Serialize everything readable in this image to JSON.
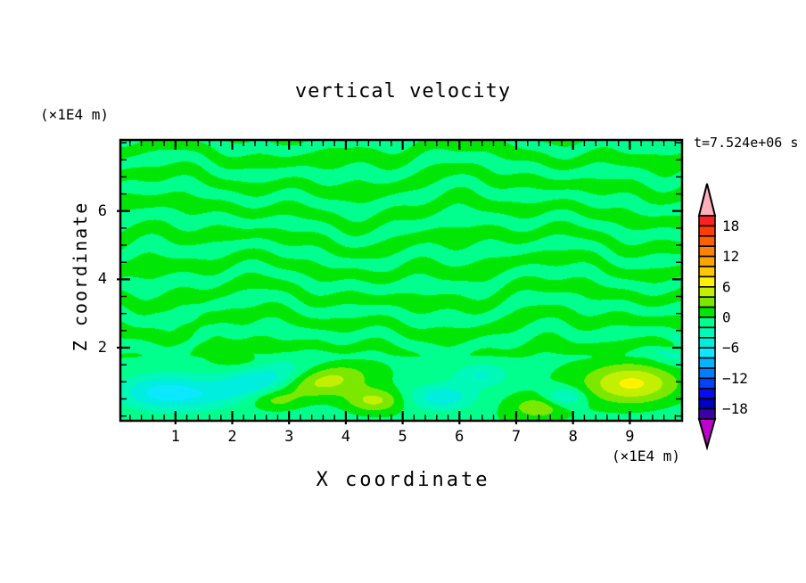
{
  "header": {
    "title": "vertical velocity",
    "time_label": "t=7.524e+06 s"
  },
  "axes": {
    "x": {
      "title": "X coordinate",
      "units": "(×1E4 m)",
      "tick_labels": [
        "1",
        "2",
        "3",
        "4",
        "5",
        "6",
        "7",
        "8",
        "9"
      ],
      "tick_values": [
        1,
        2,
        3,
        4,
        5,
        6,
        7,
        8,
        9
      ],
      "minor_step": 0.2,
      "range": [
        0.03,
        9.92
      ]
    },
    "z": {
      "title": "Z coordinate",
      "units": "(×1E4 m)",
      "tick_labels": [
        "2",
        "4",
        "6"
      ],
      "tick_values": [
        2,
        4,
        6
      ],
      "minor_step": 0.5,
      "range": [
        -0.14,
        8.08
      ]
    }
  },
  "colorbar": {
    "labels": [
      "18",
      "12",
      "6",
      "0",
      "−6",
      "−12",
      "−18"
    ],
    "label_values": [
      18,
      12,
      6,
      0,
      -6,
      -12,
      -18
    ],
    "min": -20,
    "max": 20,
    "interval": 2,
    "cell_colors_top_to_bottom": [
      "#fb2222",
      "#ff3c00",
      "#ff6000",
      "#ff8200",
      "#ffa300",
      "#ffc800",
      "#fff200",
      "#c3f000",
      "#7ce800",
      "#00e605",
      "#00ff8c",
      "#00f8b8",
      "#00eede",
      "#0ce8ff",
      "#00b4ff",
      "#007cff",
      "#0043ff",
      "#0b0bf0",
      "#0000c0",
      "#3c00a8"
    ],
    "over_arrow_color": "#ffb0bc",
    "under_arrow_color": "#c000cc"
  },
  "chart_data": {
    "type": "heatmap",
    "subtype": "filled_contour",
    "title": "vertical velocity",
    "xlabel": "X coordinate (×1E4 m)",
    "ylabel": "Z coordinate (×1E4 m)",
    "time_annotation": "t=7.524e+06 s",
    "x_range": [
      0.03,
      9.92
    ],
    "z_range": [
      -0.14,
      8.08
    ],
    "contour_interval": 2,
    "level_min": -20,
    "level_max": 20,
    "legend_position": "right-colorbar",
    "description": "Wavy horizontal stripe pattern of weak up/down motion (|w|<2) above z≈2; stronger smooth cells below z≈2: downdraft (cyan) near x≈0.8 and x≈2.5 and x≈5.7, updraft (chartreuse/yellow) near x≈3.6, x≈4.5 and strongest (~+7) near x≈9.0.",
    "field_model": {
      "wave": {
        "amp": 1.85,
        "z_freq": 7.6,
        "cap": 1.95,
        "soft_k": 1.35,
        "mod": {
          "base": 0.8,
          "a": 0.25,
          "fz": 0.9,
          "fx": 1.3,
          "inner": 1.7
        },
        "phase_terms": [
          {
            "a": 1.9,
            "fx": 1.15,
            "fz": 0.55,
            "p": 0.0
          },
          {
            "a": 1.1,
            "fx": 2.45,
            "fz": -0.7,
            "p": 1.3
          },
          {
            "a": 0.65,
            "fx": 4.2,
            "fz": 1.6,
            "p": 0.4
          },
          {
            "a": 0.45,
            "fx": 6.3,
            "fz": -2.2,
            "p": 0.0
          }
        ],
        "ripple": {
          "a": 0.6,
          "fx1": 8.5,
          "fz1": -1.5,
          "fz2": 5.5,
          "fx2": 2.0,
          "cx": 1.7,
          "sx": 1.5,
          "cz": 2.55,
          "sz": 0.75
        }
      },
      "transition": {
        "z0": 1.55,
        "z1": 2.25
      },
      "low_band": {
        "base": -0.6,
        "a": 0.5,
        "f": 0.9,
        "p": 2.0
      },
      "blobs": [
        {
          "x": 0.8,
          "z": 0.7,
          "sx": 0.8,
          "sz": 0.5,
          "a": -6.6,
          "slope": 0.0
        },
        {
          "x": 2.45,
          "z": 1.0,
          "sx": 1.0,
          "sz": 0.42,
          "a": -5.4,
          "slope": 0.35
        },
        {
          "x": 2.05,
          "z": 1.72,
          "sx": 0.5,
          "sz": 0.3,
          "a": 2.4,
          "slope": 0.0
        },
        {
          "x": 3.6,
          "z": 1.05,
          "sx": 0.8,
          "sz": 0.5,
          "a": 6.2,
          "slope": 0.15
        },
        {
          "x": 4.5,
          "z": 0.45,
          "sx": 0.5,
          "sz": 0.35,
          "a": 5.2,
          "slope": 0.0
        },
        {
          "x": 2.75,
          "z": 0.45,
          "sx": 0.45,
          "sz": 0.3,
          "a": 3.0,
          "slope": 0.0
        },
        {
          "x": 5.7,
          "z": 0.55,
          "sx": 0.6,
          "sz": 0.4,
          "a": -5.2,
          "slope": 0.0
        },
        {
          "x": 6.4,
          "z": 1.2,
          "sx": 0.5,
          "sz": 0.35,
          "a": -4.0,
          "slope": 0.0
        },
        {
          "x": 7.4,
          "z": 0.25,
          "sx": 0.45,
          "sz": 0.32,
          "a": 4.0,
          "slope": 0.0
        },
        {
          "x": 7.85,
          "z": 0.55,
          "sx": 0.35,
          "sz": 0.28,
          "a": -4.6,
          "slope": 0.0
        },
        {
          "x": 9.05,
          "z": 0.95,
          "sx": 0.85,
          "sz": 0.6,
          "a": 7.4,
          "slope": 0.0
        },
        {
          "x": 9.95,
          "z": 2.0,
          "sx": 0.55,
          "sz": 0.45,
          "a": -3.5,
          "slope": 0.0
        }
      ]
    }
  }
}
